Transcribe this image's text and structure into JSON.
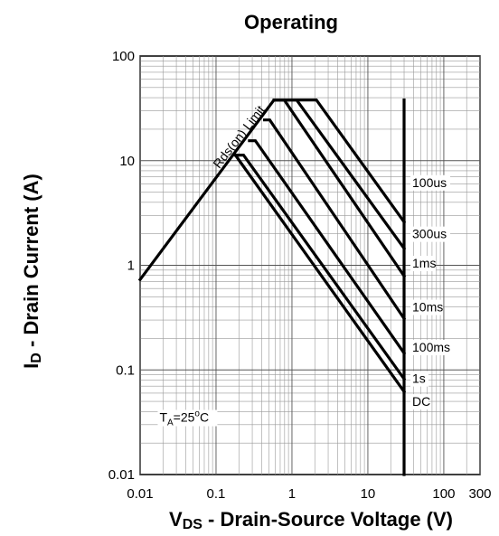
{
  "chart_data": {
    "type": "line",
    "title": "Operating",
    "xlabel": {
      "main": "V",
      "sub": "DS",
      "rest": " - Drain-Source Voltage (V)"
    },
    "ylabel": {
      "main": "I",
      "sub": "D",
      "rest": " - Drain Current (A)"
    },
    "x_scale": "log",
    "y_scale": "log",
    "xlim": [
      0.01,
      300
    ],
    "ylim": [
      0.01,
      100
    ],
    "grid": true,
    "x_ticks": [
      {
        "value": 0.01,
        "label": "0.01"
      },
      {
        "value": 0.1,
        "label": "0.1"
      },
      {
        "value": 1,
        "label": "1"
      },
      {
        "value": 10,
        "label": "10"
      },
      {
        "value": 100,
        "label": "100"
      },
      {
        "value": 300,
        "label": "300"
      }
    ],
    "y_ticks": [
      {
        "value": 0.01,
        "label": "0.01"
      },
      {
        "value": 0.1,
        "label": "0.1"
      },
      {
        "value": 1,
        "label": "1"
      },
      {
        "value": 10,
        "label": "10"
      },
      {
        "value": 100,
        "label": "100"
      }
    ],
    "annotations": [
      {
        "text": "Rds(on) Limit",
        "x": 0.11,
        "y": 8.3
      },
      {
        "text_main": "T",
        "text_sub": "A",
        "text_rest": "=25",
        "text_sup": "o",
        "text_end": "C",
        "x": 0.018,
        "y": 0.032
      }
    ],
    "series": [
      {
        "name": "100us",
        "label_at": [
          30,
          6.2
        ],
        "points": [
          [
            0.01,
            0.73
          ],
          [
            0.58,
            38
          ],
          [
            2.1,
            38
          ],
          [
            30,
            2.6
          ]
        ]
      },
      {
        "name": "300us",
        "label_at": [
          30,
          2.0
        ],
        "points": [
          [
            0.58,
            38
          ],
          [
            1.15,
            38
          ],
          [
            30,
            1.45
          ]
        ]
      },
      {
        "name": "1ms",
        "label_at": [
          30,
          1.05
        ],
        "points": [
          [
            0.58,
            38
          ],
          [
            0.79,
            38
          ],
          [
            30,
            0.79
          ]
        ]
      },
      {
        "name": "10ms",
        "label_at": [
          30,
          0.4
        ],
        "points": [
          [
            0.435,
            24.5
          ],
          [
            0.51,
            24.5
          ],
          [
            30,
            0.31
          ]
        ]
      },
      {
        "name": "100ms",
        "label_at": [
          30,
          0.165
        ],
        "points": [
          [
            0.275,
            15.5
          ],
          [
            0.33,
            15.5
          ],
          [
            30,
            0.145
          ]
        ]
      },
      {
        "name": "1s",
        "label_at": [
          30,
          0.083
        ],
        "points": [
          [
            0.18,
            11.3
          ],
          [
            0.23,
            11.3
          ],
          [
            30,
            0.082
          ]
        ]
      },
      {
        "name": "DC",
        "label_at": [
          30,
          0.05
        ],
        "points": [
          [
            0.18,
            11.3
          ],
          [
            30,
            0.062
          ]
        ]
      },
      {
        "name": "",
        "points": [
          [
            30,
            38
          ],
          [
            30,
            0.01
          ]
        ]
      }
    ]
  }
}
